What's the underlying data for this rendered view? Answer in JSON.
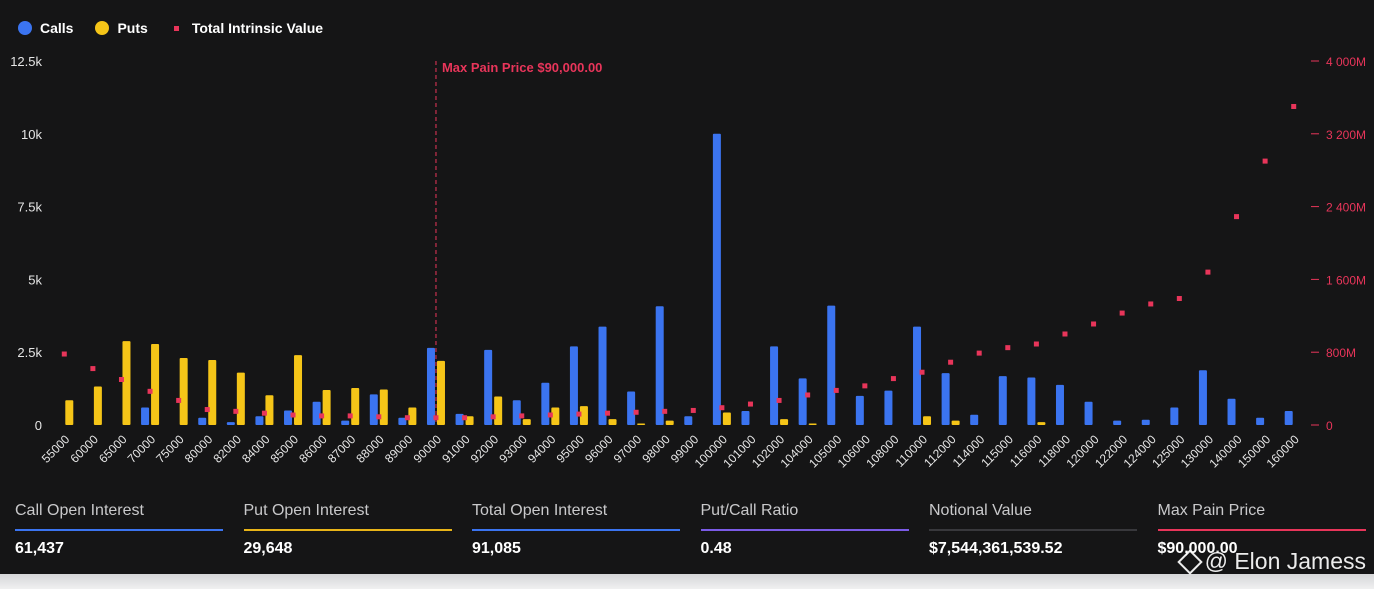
{
  "legend": {
    "calls": "Calls",
    "puts": "Puts",
    "total_intrinsic": "Total Intrinsic Value"
  },
  "colors": {
    "calls": "#3b74f0",
    "puts": "#f5c518",
    "intrinsic": "#e8355a",
    "call_line": "#3b74f0",
    "put_line": "#e8b418",
    "total_line": "#3b74f0",
    "ratio_line": "#7b5be6",
    "notional_line": "#38383c",
    "maxpain_line": "#e8355a"
  },
  "chart_data": {
    "type": "bar",
    "title": "",
    "xlabel": "",
    "ylabel": "",
    "ylim": [
      0,
      12500
    ],
    "y2lim": [
      0,
      4000
    ],
    "y_ticks": [
      "0",
      "2.5k",
      "5k",
      "7.5k",
      "10k",
      "12.5k"
    ],
    "y_tick_values": [
      0,
      2500,
      5000,
      7500,
      10000,
      12500
    ],
    "y2_ticks": [
      "0",
      "800M",
      "1 600M",
      "2 400M",
      "3 200M",
      "4 000M"
    ],
    "y2_tick_values": [
      0,
      800,
      1600,
      2400,
      3200,
      4000
    ],
    "categories": [
      "55000",
      "60000",
      "65000",
      "70000",
      "75000",
      "80000",
      "82000",
      "84000",
      "85000",
      "86000",
      "87000",
      "88000",
      "89000",
      "90000",
      "91000",
      "92000",
      "93000",
      "94000",
      "95000",
      "96000",
      "97000",
      "98000",
      "99000",
      "100000",
      "101000",
      "102000",
      "104000",
      "105000",
      "106000",
      "108000",
      "110000",
      "112000",
      "114000",
      "115000",
      "116000",
      "118000",
      "120000",
      "122000",
      "124000",
      "125000",
      "130000",
      "140000",
      "150000",
      "160000"
    ],
    "series": [
      {
        "name": "Calls",
        "values": [
          0,
          0,
          0,
          600,
          0,
          250,
          100,
          300,
          500,
          800,
          150,
          1050,
          250,
          2650,
          380,
          2580,
          850,
          1450,
          2700,
          3380,
          1150,
          4080,
          300,
          10000,
          480,
          2700,
          1600,
          4100,
          1000,
          1180,
          3380,
          1780,
          350,
          1680,
          1630,
          1380,
          800,
          150,
          180,
          600,
          1880,
          900,
          250,
          480
        ]
      },
      {
        "name": "Puts",
        "values": [
          850,
          1320,
          2880,
          2780,
          2300,
          2230,
          1800,
          1020,
          2400,
          1200,
          1270,
          1220,
          600,
          2200,
          300,
          980,
          200,
          600,
          650,
          200,
          50,
          150,
          0,
          430,
          0,
          200,
          50,
          0,
          0,
          0,
          300,
          150,
          0,
          0,
          100,
          0,
          0,
          0,
          0,
          0,
          0,
          0,
          0,
          0
        ]
      },
      {
        "name": "Total Intrinsic Value",
        "values": [
          780,
          620,
          500,
          370,
          270,
          170,
          150,
          130,
          110,
          100,
          100,
          90,
          80,
          80,
          80,
          90,
          100,
          110,
          120,
          130,
          140,
          150,
          160,
          190,
          230,
          270,
          330,
          380,
          430,
          510,
          580,
          690,
          790,
          850,
          890,
          1000,
          1110,
          1230,
          1330,
          1390,
          1680,
          2290,
          2900,
          3500
        ]
      }
    ],
    "annotation": "Max Pain Price $90,000.00",
    "annotation_category": "90000"
  },
  "stats": [
    {
      "label": "Call Open Interest",
      "value": "61,437"
    },
    {
      "label": "Put Open Interest",
      "value": "29,648"
    },
    {
      "label": "Total Open Interest",
      "value": "91,085"
    },
    {
      "label": "Put/Call Ratio",
      "value": "0.48"
    },
    {
      "label": "Notional Value",
      "value": "$7,544,361,539.52"
    },
    {
      "label": "Max Pain Price",
      "value": "$90,000.00"
    }
  ],
  "watermark": "@ Elon Jamess"
}
